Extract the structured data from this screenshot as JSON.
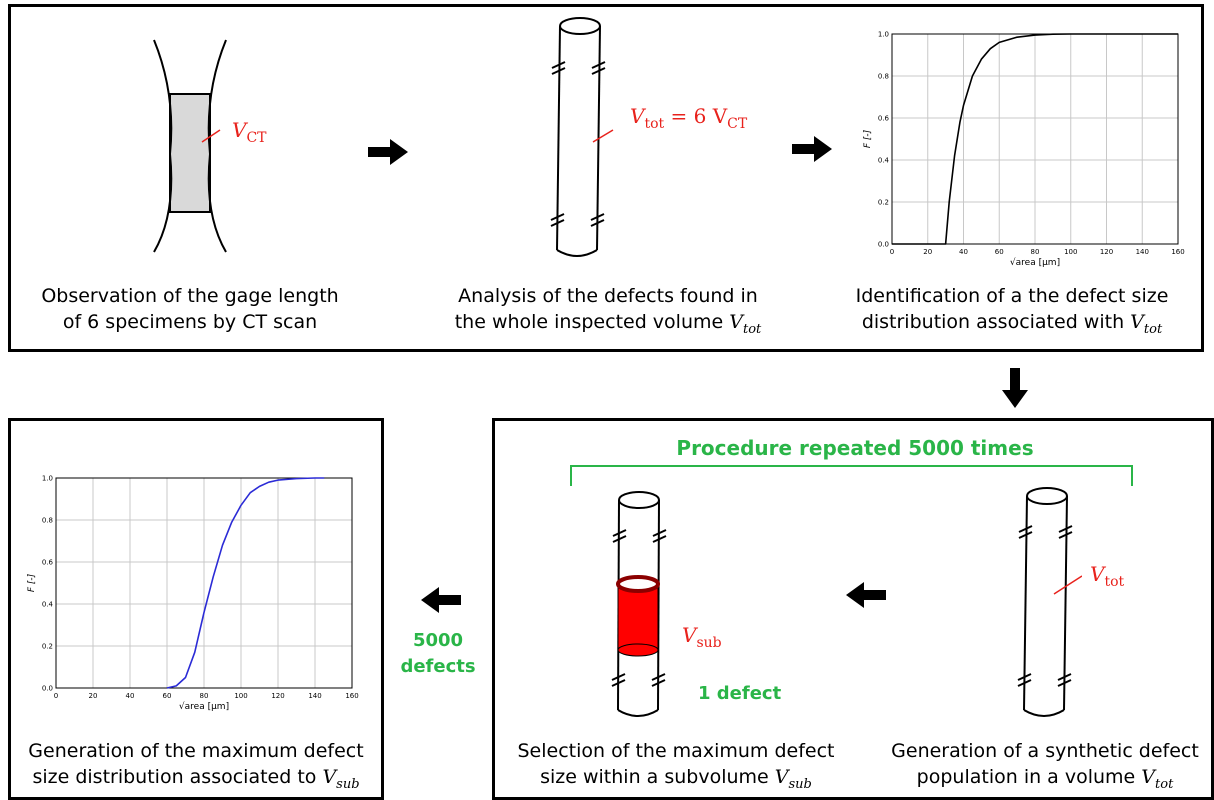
{
  "captions": {
    "p1_line1": "Observation of the gage length",
    "p1_line2": "of 6 specimens by CT scan",
    "p2_line1": "Analysis of the defects found in",
    "p2_line2_prefix": "the whole inspected volume ",
    "p3_line1": "Identification of a the defect size",
    "p3_line2_prefix": "distribution associated with ",
    "p4_line1": "Generation of the maximum defect",
    "p4_line2_prefix": "size distribution associated to ",
    "p5_line1": "Selection of the maximum defect",
    "p5_line2_prefix": "size within a subvolume ",
    "p6_line1": "Generation of a synthetic defect",
    "p6_line2_prefix": "population in a volume "
  },
  "symbols": {
    "V": "V",
    "tot": "tot",
    "sub": "sub",
    "CT": "CT",
    "eq_6": " = 6 V"
  },
  "labels": {
    "procedure": "Procedure repeated 5000 times",
    "one_defect": "1 defect",
    "defects_count": "5000",
    "defects_word": "defects"
  },
  "colors": {
    "red": "#e8221c",
    "green": "#2ab548",
    "curve_black": "#000000",
    "curve_blue": "#2b2bd6"
  },
  "chart_data": [
    {
      "type": "line",
      "xlabel": "√area [μm]",
      "ylabel": "F [-]",
      "xlim": [
        0,
        160
      ],
      "ylim": [
        0,
        1
      ],
      "xticks": [
        0,
        20,
        40,
        60,
        80,
        100,
        120,
        140,
        160
      ],
      "yticks": [
        0.0,
        0.2,
        0.4,
        0.6,
        0.8,
        1.0
      ],
      "grid": true,
      "series": [
        {
          "color": "#000000",
          "x": [
            0,
            28,
            30,
            32,
            35,
            38,
            40,
            45,
            50,
            55,
            60,
            70,
            80,
            90,
            100,
            160
          ],
          "y": [
            0,
            0,
            0,
            0.2,
            0.42,
            0.58,
            0.66,
            0.8,
            0.88,
            0.93,
            0.96,
            0.985,
            0.995,
            0.999,
            1,
            1
          ]
        }
      ]
    },
    {
      "type": "line",
      "xlabel": "√area [μm]",
      "ylabel": "F [-]",
      "xlim": [
        0,
        160
      ],
      "ylim": [
        0,
        1
      ],
      "xticks": [
        0,
        20,
        40,
        60,
        80,
        100,
        120,
        140,
        160
      ],
      "yticks": [
        0.0,
        0.2,
        0.4,
        0.6,
        0.8,
        1.0
      ],
      "grid": true,
      "series": [
        {
          "color": "#2b2bd6",
          "x": [
            60,
            65,
            70,
            75,
            80,
            85,
            90,
            95,
            100,
            105,
            110,
            115,
            120,
            130,
            140,
            145
          ],
          "y": [
            0,
            0.01,
            0.05,
            0.17,
            0.36,
            0.53,
            0.68,
            0.79,
            0.87,
            0.93,
            0.96,
            0.98,
            0.99,
            0.997,
            1,
            1
          ]
        }
      ]
    }
  ]
}
